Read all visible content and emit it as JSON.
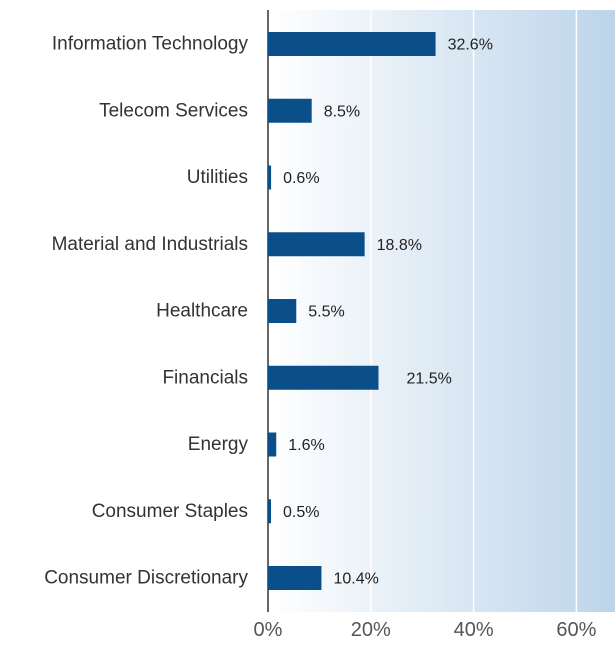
{
  "colors": {
    "bar": "#0b4f8a",
    "plot_bg_start": "#ffffff",
    "plot_bg_end": "#bcd4ea",
    "gridline": "#ffffff",
    "axis": "#333333"
  },
  "chart_data": {
    "type": "bar",
    "orientation": "horizontal",
    "categories": [
      "Information Technology",
      "Telecom Services",
      "Utilities",
      "Material and Industrials",
      "Healthcare",
      "Financials",
      "Energy",
      "Consumer Staples",
      "Consumer Discretionary"
    ],
    "values": [
      32.6,
      8.5,
      0.6,
      18.8,
      5.5,
      21.5,
      1.6,
      0.5,
      10.4
    ],
    "value_labels": [
      "32.6%",
      "8.5%",
      "0.6%",
      "18.8%",
      "5.5%",
      "21.5%",
      "1.6%",
      "0.5%",
      "10.4%"
    ],
    "xlim": [
      0,
      67
    ],
    "x_ticks": [
      0,
      20,
      40,
      60
    ],
    "x_tick_labels": [
      "0%",
      "20%",
      "40%",
      "60%"
    ],
    "grid": true,
    "title": "",
    "xlabel": "",
    "ylabel": ""
  }
}
